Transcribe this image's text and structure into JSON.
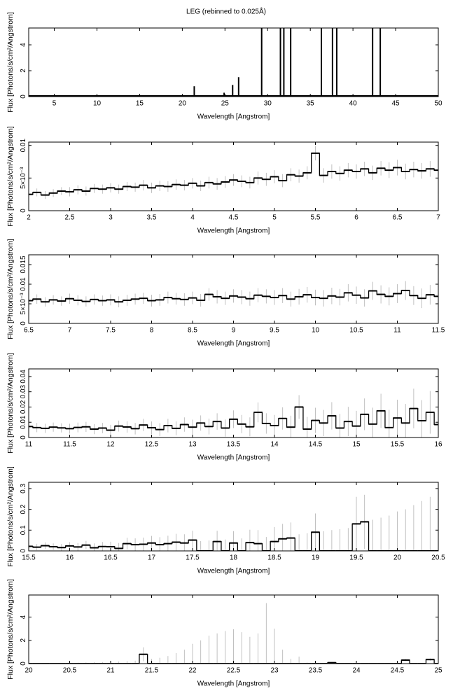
{
  "chart_data": [
    {
      "type": "stem",
      "title": "LEG (rebinned to 0.025Å)",
      "x_label": "Wavelength [Angstrom]",
      "y_label": "Flux [Photons/s/cm²/Angstrom]",
      "x": [
        2,
        21.4,
        24.9,
        25.9,
        26.6,
        29.3,
        31.5,
        31.9,
        32.7,
        36.3,
        37.6,
        38.1,
        42.3,
        43.2,
        50
      ],
      "values": [
        0.02,
        0.8,
        0.3,
        0.9,
        1.5,
        6,
        6,
        6,
        6,
        6,
        6,
        6,
        6,
        6,
        0.02
      ],
      "xlim": [
        2,
        50
      ],
      "xticks": [
        5,
        10,
        15,
        20,
        25,
        30,
        35,
        40,
        45,
        50
      ],
      "ylim": [
        0,
        5.3
      ],
      "yticks": [
        0,
        2,
        4
      ],
      "color": "#000000"
    },
    {
      "type": "step",
      "x_label": "Wavelength [Angstrom]",
      "y_label": "Flux [Photons/s/cm²/Angstrom]",
      "x": [
        2,
        2.1,
        2.2,
        2.3,
        2.4,
        2.5,
        2.6,
        2.7,
        2.8,
        2.9,
        3,
        3.1,
        3.2,
        3.3,
        3.4,
        3.5,
        3.6,
        3.7,
        3.8,
        3.9,
        4,
        4.1,
        4.2,
        4.3,
        4.4,
        4.5,
        4.6,
        4.7,
        4.8,
        4.9,
        5,
        5.1,
        5.2,
        5.3,
        5.4,
        5.5,
        5.6,
        5.7,
        5.8,
        5.9,
        6,
        6.1,
        6.2,
        6.3,
        6.4,
        6.5,
        6.6,
        6.7,
        6.8,
        6.9,
        7
      ],
      "values": [
        0.0025,
        0.0028,
        0.0024,
        0.0027,
        0.003,
        0.0029,
        0.0032,
        0.003,
        0.0034,
        0.0033,
        0.0035,
        0.0033,
        0.0037,
        0.0036,
        0.0039,
        0.0035,
        0.0038,
        0.0037,
        0.004,
        0.0039,
        0.0042,
        0.0038,
        0.0043,
        0.0041,
        0.0044,
        0.0047,
        0.0045,
        0.0043,
        0.005,
        0.0048,
        0.0052,
        0.0046,
        0.0055,
        0.0053,
        0.0058,
        0.0088,
        0.0054,
        0.006,
        0.0057,
        0.0062,
        0.006,
        0.0064,
        0.0058,
        0.0065,
        0.0062,
        0.0066,
        0.006,
        0.0063,
        0.0061,
        0.0064,
        0.0062
      ],
      "errors": [
        0.0006,
        0.0006,
        0.0006,
        0.0006,
        0.0006,
        0.0007,
        0.0007,
        0.0007,
        0.0007,
        0.0007,
        0.0007,
        0.0007,
        0.0007,
        0.0007,
        0.0008,
        0.0008,
        0.0008,
        0.0008,
        0.0008,
        0.0008,
        0.0008,
        0.0008,
        0.0009,
        0.0009,
        0.0009,
        0.0009,
        0.0009,
        0.0009,
        0.001,
        0.001,
        0.001,
        0.001,
        0.001,
        0.001,
        0.001,
        0.0011,
        0.0011,
        0.0011,
        0.0011,
        0.0011,
        0.0011,
        0.0011,
        0.0011,
        0.0011,
        0.0012,
        0.0012,
        0.0012,
        0.0012,
        0.0012,
        0.0012,
        0.0012
      ],
      "xlim": [
        2,
        7
      ],
      "xticks": [
        2,
        2.5,
        3,
        3.5,
        4,
        4.5,
        5,
        5.5,
        6,
        6.5,
        7
      ],
      "ylim": [
        0,
        0.0105
      ],
      "yticks": [
        0,
        {
          "value": 0.005,
          "label": "5×10⁻³"
        },
        0.01
      ],
      "color": "#000000",
      "error_color": "#b0b0b0"
    },
    {
      "type": "step",
      "x_label": "Wavelength [Angstrom]",
      "y_label": "Flux [Photons/s/cm²/Angstrom]",
      "x": [
        6.5,
        6.6,
        6.7,
        6.8,
        6.9,
        7,
        7.1,
        7.2,
        7.3,
        7.4,
        7.5,
        7.6,
        7.7,
        7.8,
        7.9,
        8,
        8.1,
        8.2,
        8.3,
        8.4,
        8.5,
        8.6,
        8.7,
        8.8,
        8.9,
        9,
        9.1,
        9.2,
        9.3,
        9.4,
        9.5,
        9.6,
        9.7,
        9.8,
        9.9,
        10,
        10.1,
        10.2,
        10.3,
        10.4,
        10.5,
        10.6,
        10.7,
        10.8,
        10.9,
        11,
        11.1,
        11.2,
        11.3,
        11.4,
        11.5
      ],
      "values": [
        0.0058,
        0.0062,
        0.0055,
        0.006,
        0.0057,
        0.0063,
        0.0059,
        0.0056,
        0.0061,
        0.0058,
        0.006,
        0.0055,
        0.0059,
        0.0062,
        0.0064,
        0.0058,
        0.006,
        0.0066,
        0.0063,
        0.0061,
        0.0065,
        0.0059,
        0.0074,
        0.0068,
        0.0064,
        0.007,
        0.0067,
        0.0063,
        0.0072,
        0.0069,
        0.0066,
        0.0071,
        0.0062,
        0.0068,
        0.0073,
        0.0066,
        0.0064,
        0.007,
        0.0067,
        0.0078,
        0.0072,
        0.0065,
        0.0083,
        0.0074,
        0.0069,
        0.0076,
        0.0084,
        0.0071,
        0.0064,
        0.0073,
        0.0069
      ],
      "errors": [
        0.0012,
        0.0012,
        0.0012,
        0.0012,
        0.0012,
        0.0013,
        0.0013,
        0.0013,
        0.0013,
        0.0013,
        0.0014,
        0.0014,
        0.0014,
        0.0014,
        0.0014,
        0.0015,
        0.0015,
        0.0015,
        0.0015,
        0.0016,
        0.0016,
        0.0016,
        0.0016,
        0.0017,
        0.0017,
        0.0017,
        0.0018,
        0.0018,
        0.0018,
        0.0018,
        0.0019,
        0.0019,
        0.0019,
        0.002,
        0.002,
        0.002,
        0.0021,
        0.0021,
        0.0021,
        0.0022,
        0.0022,
        0.0022,
        0.0023,
        0.0023,
        0.0023,
        0.0024,
        0.0024,
        0.0024,
        0.0025,
        0.0025,
        0.0025
      ],
      "xlim": [
        6.5,
        11.5
      ],
      "xticks": [
        6.5,
        7,
        7.5,
        8,
        8.5,
        9,
        9.5,
        10,
        10.5,
        11,
        11.5
      ],
      "ylim": [
        0,
        0.0175
      ],
      "yticks": [
        0,
        {
          "value": 0.005,
          "label": "5×10⁻³"
        },
        0.01,
        0.015
      ],
      "color": "#000000",
      "error_color": "#b0b0b0"
    },
    {
      "type": "step",
      "x_label": "Wavelength [Angstrom]",
      "y_label": "Flux [Photons/s/cm²/Angstrom]",
      "x": [
        11,
        11.1,
        11.2,
        11.3,
        11.4,
        11.5,
        11.6,
        11.7,
        11.8,
        11.9,
        12,
        12.1,
        12.2,
        12.3,
        12.4,
        12.5,
        12.6,
        12.7,
        12.8,
        12.9,
        13,
        13.1,
        13.2,
        13.3,
        13.4,
        13.5,
        13.6,
        13.7,
        13.8,
        13.9,
        14,
        14.1,
        14.2,
        14.3,
        14.4,
        14.5,
        14.6,
        14.7,
        14.8,
        14.9,
        15,
        15.1,
        15.2,
        15.3,
        15.4,
        15.5,
        15.6,
        15.7,
        15.8,
        15.9,
        16
      ],
      "values": [
        0.0072,
        0.0065,
        0.006,
        0.0068,
        0.0063,
        0.0058,
        0.0066,
        0.007,
        0.0055,
        0.0062,
        0.0048,
        0.0075,
        0.0069,
        0.0058,
        0.0082,
        0.0064,
        0.0052,
        0.0078,
        0.006,
        0.0085,
        0.0068,
        0.0095,
        0.0072,
        0.0105,
        0.0062,
        0.012,
        0.0088,
        0.007,
        0.0165,
        0.0092,
        0.0078,
        0.0125,
        0.0068,
        0.02,
        0.0055,
        0.0112,
        0.0095,
        0.0142,
        0.0062,
        0.0105,
        0.0075,
        0.0152,
        0.0088,
        0.0175,
        0.0065,
        0.0128,
        0.0095,
        0.019,
        0.011,
        0.0165,
        0.0085
      ],
      "errors": [
        0.003,
        0.003,
        0.003,
        0.003,
        0.003,
        0.0032,
        0.0032,
        0.0033,
        0.0033,
        0.0034,
        0.0035,
        0.0036,
        0.0037,
        0.0038,
        0.004,
        0.0041,
        0.0042,
        0.0044,
        0.0045,
        0.0047,
        0.0049,
        0.005,
        0.0052,
        0.0054,
        0.0056,
        0.0058,
        0.006,
        0.0062,
        0.0065,
        0.0067,
        0.007,
        0.0073,
        0.0075,
        0.0078,
        0.008,
        0.0083,
        0.0086,
        0.009,
        0.0093,
        0.0096,
        0.01,
        0.0104,
        0.0108,
        0.0112,
        0.0116,
        0.012,
        0.0125,
        0.013,
        0.0135,
        0.014,
        0.015
      ],
      "xlim": [
        11,
        16
      ],
      "xticks": [
        11,
        11.5,
        12,
        12.5,
        13,
        13.5,
        14,
        14.5,
        15,
        15.5,
        16
      ],
      "ylim": [
        0,
        0.045
      ],
      "yticks": [
        0,
        0.01,
        0.02,
        0.03,
        0.04
      ],
      "color": "#000000",
      "error_color": "#b0b0b0"
    },
    {
      "type": "step",
      "x_label": "Wavelength [Angstrom]",
      "y_label": "Flux [Photons/s/cm²/Angstrom]",
      "x": [
        15.5,
        15.6,
        15.7,
        15.8,
        15.9,
        16,
        16.1,
        16.2,
        16.3,
        16.4,
        16.5,
        16.6,
        16.7,
        16.8,
        16.9,
        17,
        17.1,
        17.2,
        17.3,
        17.4,
        17.5,
        17.6,
        17.7,
        17.8,
        17.9,
        18,
        18.1,
        18.2,
        18.3,
        18.4,
        18.5,
        18.6,
        18.7,
        18.8,
        18.9,
        19,
        19.1,
        19.2,
        19.3,
        19.4,
        19.5,
        19.6,
        19.7,
        19.8,
        19.9,
        20,
        20.1,
        20.2,
        20.3,
        20.4,
        20.5
      ],
      "values": [
        0.022,
        0.018,
        0.025,
        0.02,
        0.016,
        0.024,
        0.019,
        0.028,
        0.015,
        0.021,
        0.02,
        0.012,
        0.035,
        0.03,
        0.032,
        0.038,
        0.03,
        0.035,
        0.042,
        0.038,
        0.052,
        0,
        0,
        0.045,
        0,
        0.038,
        0,
        0.04,
        0.035,
        0,
        0.045,
        0.058,
        0.062,
        0,
        0,
        0.09,
        0,
        0,
        0,
        0,
        0.13,
        0.14,
        0,
        0,
        0,
        0,
        0,
        0,
        0,
        0,
        0
      ],
      "errors": [
        0.015,
        0.015,
        0.016,
        0.016,
        0.017,
        0.018,
        0.019,
        0.02,
        0.021,
        0.022,
        0.024,
        0.026,
        0.028,
        0.03,
        0.032,
        0.034,
        0.036,
        0.038,
        0.04,
        0.042,
        0.045,
        0.047,
        0.05,
        0.052,
        0.055,
        0.057,
        0.06,
        0.062,
        0.065,
        0.067,
        0.07,
        0.072,
        0.075,
        0.08,
        0.085,
        0.09,
        0.095,
        0.1,
        0.105,
        0.11,
        0.13,
        0.13,
        0.15,
        0.16,
        0.17,
        0.19,
        0.2,
        0.22,
        0.24,
        0.26,
        0.29
      ],
      "xlim": [
        15.5,
        20.5
      ],
      "xticks": [
        15.5,
        16,
        16.5,
        17,
        17.5,
        18,
        18.5,
        19,
        19.5,
        20,
        20.5
      ],
      "ylim": [
        0,
        0.33
      ],
      "yticks": [
        0,
        0.1,
        0.2,
        0.3
      ],
      "color": "#000000",
      "error_color": "#b0b0b0"
    },
    {
      "type": "step",
      "x_label": "Wavelength [Angstrom]",
      "y_label": "Flux [Photons/s/cm²/Angstrom]",
      "x": [
        20,
        20.1,
        20.2,
        20.3,
        20.4,
        20.5,
        20.6,
        20.7,
        20.8,
        20.9,
        21,
        21.1,
        21.2,
        21.3,
        21.4,
        21.5,
        21.6,
        21.7,
        21.8,
        21.9,
        22,
        22.1,
        22.2,
        22.3,
        22.4,
        22.5,
        22.6,
        22.7,
        22.8,
        22.9,
        23,
        23.1,
        23.2,
        23.3,
        23.4,
        23.5,
        23.6,
        23.7,
        23.8,
        23.9,
        24,
        24.1,
        24.2,
        24.3,
        24.4,
        24.5,
        24.6,
        24.7,
        24.8,
        24.9,
        25
      ],
      "values": [
        0,
        0,
        0,
        0,
        0,
        0,
        0,
        0,
        0,
        0,
        0,
        0,
        0,
        0,
        0.8,
        0,
        0,
        0,
        0,
        0,
        0,
        0,
        0,
        0,
        0,
        0,
        0,
        0,
        0,
        0,
        0,
        0,
        0,
        0,
        0,
        0,
        0,
        0.08,
        0,
        0,
        0,
        0,
        0,
        0,
        0,
        0,
        0.3,
        0,
        0,
        0.35,
        0
      ],
      "errors": [
        0.05,
        0.05,
        0.06,
        0.06,
        0.07,
        0.08,
        0.09,
        0.1,
        0.11,
        0.13,
        0.15,
        0.18,
        0.21,
        0.25,
        0.6,
        0.4,
        0.5,
        0.65,
        0.9,
        1.2,
        1.7,
        2.0,
        2.4,
        2.6,
        2.8,
        2.95,
        2.7,
        2.3,
        2.6,
        5.2,
        3.0,
        1.2,
        0.4,
        0.6,
        0.1,
        0.05,
        0.05,
        0.05,
        0.05,
        0.05,
        0.05,
        0.05,
        0.05,
        0.05,
        0.05,
        0.05,
        0.1,
        0.05,
        0.05,
        0.1,
        0.05
      ],
      "xlim": [
        20,
        25
      ],
      "xticks": [
        20,
        20.5,
        21,
        21.5,
        22,
        22.5,
        23,
        23.5,
        24,
        24.5,
        25
      ],
      "ylim": [
        0,
        5.9
      ],
      "yticks": [
        0,
        2,
        4
      ],
      "color": "#000000",
      "error_color": "#b0b0b0"
    }
  ]
}
